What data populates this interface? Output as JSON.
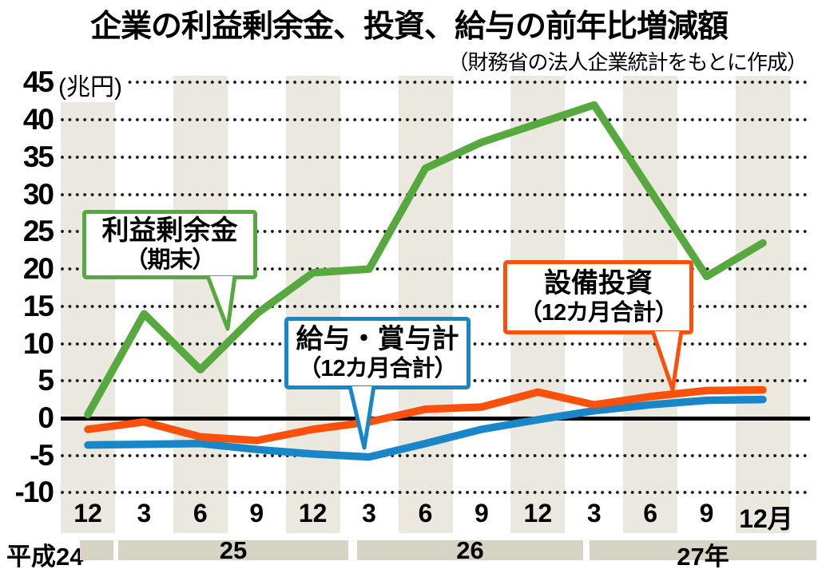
{
  "header": {
    "title": "企業の利益剰余金、投資、給与の前年比増減額",
    "subtitle": "（財務省の法人企業統計をもとに作成）"
  },
  "chart_data": {
    "type": "line",
    "title": "企業の利益剰余金、投資、給与の前年比増減額",
    "source_note": "（財務省の法人企業統計をもとに作成）",
    "unit_label": "(兆円)",
    "ylim": [
      -10,
      45
    ],
    "yticks": [
      45,
      40,
      35,
      30,
      25,
      20,
      15,
      10,
      5,
      0,
      -5,
      -10
    ],
    "grid": "dotted-horizontal",
    "zero_line": true,
    "categories": [
      "12",
      "3",
      "6",
      "9",
      "12",
      "3",
      "6",
      "9",
      "12",
      "3",
      "6",
      "9",
      "12月"
    ],
    "year_axis": {
      "left_label": "平成24",
      "bar_labels": [
        "25",
        "26",
        "27年"
      ]
    },
    "series": [
      {
        "name": "利益剰余金（期末）",
        "color": "#57a93f",
        "values": [
          0.5,
          14,
          6.5,
          14,
          19.5,
          20,
          33.5,
          37,
          39.5,
          42,
          30.5,
          19,
          23.5
        ]
      },
      {
        "name": "設備投資（12カ月合計）",
        "color": "#f9500b",
        "values": [
          -1.5,
          -0.5,
          -2.5,
          -3,
          -1.5,
          -0.5,
          1.2,
          1.5,
          3.5,
          1.8,
          2.9,
          3.7,
          3.8
        ]
      },
      {
        "name": "給与・賞与計（12カ月合計）",
        "color": "#1986c8",
        "values": [
          -3.6,
          -3.5,
          -3.4,
          -4.2,
          -4.8,
          -5.2,
          -3.4,
          -1.5,
          -0.2,
          1.0,
          1.8,
          2.4,
          2.5
        ]
      }
    ],
    "annotations": [
      {
        "id": "green",
        "series": "利益剰余金（期末）",
        "lines": [
          "利益剰余金",
          "（期末）"
        ]
      },
      {
        "id": "blue",
        "series": "給与・賞与計（12カ月合計）",
        "lines": [
          "給与・賞与計",
          "（12カ月合計）"
        ]
      },
      {
        "id": "orange",
        "series": "設備投資（12カ月合計）",
        "lines": [
          "設備投資",
          "（12カ月合計）"
        ]
      }
    ],
    "legend_position": "callout-boxes-on-plot"
  }
}
